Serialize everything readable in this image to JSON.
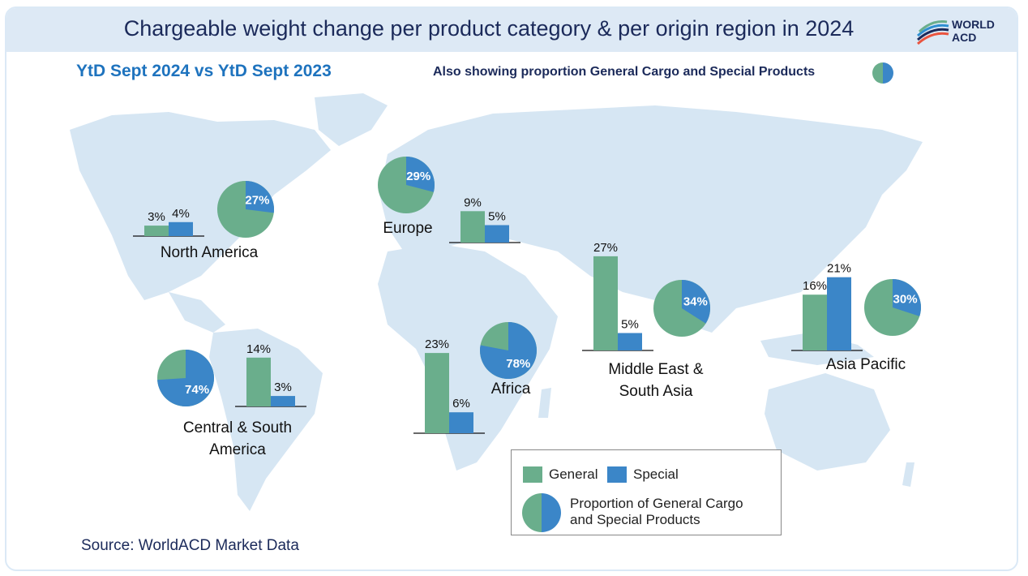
{
  "header": {
    "title": "Chargeable weight change per product category & per origin region in 2024",
    "logo_line1": "WORLD",
    "logo_line2": "ACD"
  },
  "subtitle": "YtD Sept 2024 vs YtD Sept 2023",
  "also_note": "Also showing proportion General Cargo and Special Products",
  "legend": {
    "general": "General",
    "special": "Special",
    "proportion_line1": "Proportion of General Cargo",
    "proportion_line2": "and Special Products"
  },
  "source": "Source: WorldACD Market Data",
  "colors": {
    "general": "#6aae8c",
    "special": "#3b86c8",
    "map": "#d6e6f3",
    "title": "#1b2a5a",
    "subtitle": "#1e73be"
  },
  "chart_data": {
    "type": "bar",
    "categories": [
      "General",
      "Special"
    ],
    "regions": [
      {
        "name": "North America",
        "label_lines": [
          "North America"
        ],
        "general": 3,
        "special": 4,
        "special_share": 27
      },
      {
        "name": "Europe",
        "label_lines": [
          "Europe"
        ],
        "general": 9,
        "special": 5,
        "special_share": 29
      },
      {
        "name": "Middle East & South Asia",
        "label_lines": [
          "Middle East &",
          "South Asia"
        ],
        "general": 27,
        "special": 5,
        "special_share": 34
      },
      {
        "name": "Asia Pacific",
        "label_lines": [
          "Asia Pacific"
        ],
        "general": 16,
        "special": 21,
        "special_share": 30
      },
      {
        "name": "Africa",
        "label_lines": [
          "Africa"
        ],
        "general": 23,
        "special": 6,
        "special_share": 78
      },
      {
        "name": "Central & South America",
        "label_lines": [
          "Central & South",
          "America"
        ],
        "general": 14,
        "special": 3,
        "special_share": 74
      }
    ],
    "unit": "%"
  }
}
